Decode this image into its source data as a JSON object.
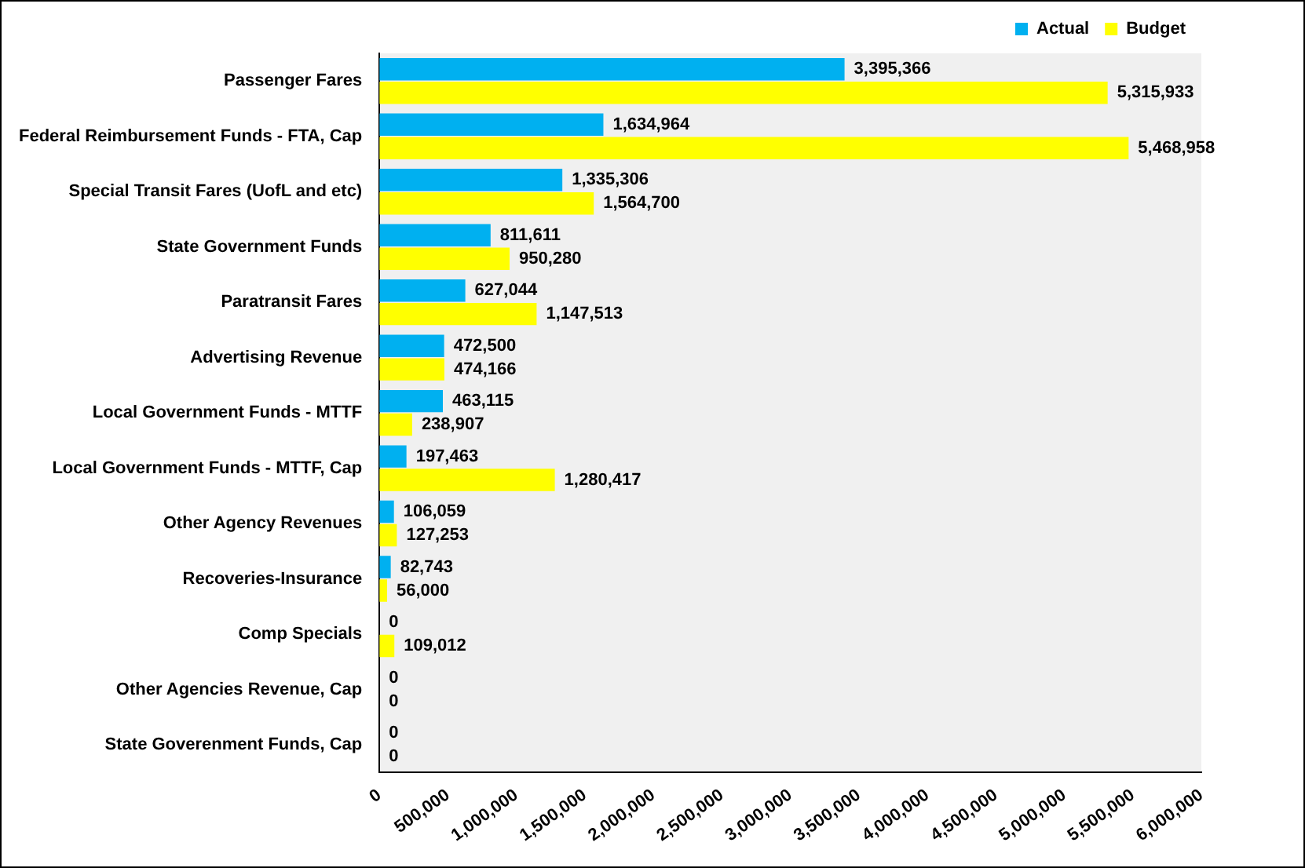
{
  "chart_data": {
    "type": "bar",
    "orientation": "horizontal",
    "categories": [
      "Passenger Fares",
      "Federal Reimbursement Funds - FTA, Cap",
      "Special Transit Fares (UofL and etc)",
      "State Government Funds",
      "Paratransit Fares",
      "Advertising Revenue",
      "Local Government Funds - MTTF",
      "Local Government Funds - MTTF, Cap",
      "Other Agency Revenues",
      "Recoveries-Insurance",
      "Comp Specials",
      "Other Agencies Revenue, Cap",
      "State Goverenment Funds, Cap"
    ],
    "series": [
      {
        "name": "Actual",
        "color": "#00b0f0",
        "values": [
          3395366,
          1634964,
          1335306,
          811611,
          627044,
          472500,
          463115,
          197463,
          106059,
          82743,
          0,
          0,
          0
        ],
        "value_labels": [
          "3,395,366",
          "1,634,964",
          "1,335,306",
          "811,611",
          "627,044",
          "472,500",
          "463,115",
          "197,463",
          "106,059",
          "82,743",
          "0",
          "0",
          "0"
        ]
      },
      {
        "name": "Budget",
        "color": "#ffff00",
        "values": [
          5315933,
          5468958,
          1564700,
          950280,
          1147513,
          474166,
          238907,
          1280417,
          127253,
          56000,
          109012,
          0,
          0
        ],
        "value_labels": [
          "5,315,933",
          "5,468,958",
          "1,564,700",
          "950,280",
          "1,147,513",
          "474,166",
          "238,907",
          "1,280,417",
          "127,253",
          "56,000",
          "109,012",
          "0",
          "0"
        ]
      }
    ],
    "xlim": [
      0,
      6000000
    ],
    "xticks": [
      0,
      {
        "value": 500000,
        "label": "500,000"
      },
      {
        "value": 1000000,
        "label": "1,000,000"
      },
      {
        "value": 1500000,
        "label": "1,500,000"
      },
      {
        "value": 2000000,
        "label": "2,000,000"
      },
      {
        "value": 2500000,
        "label": "2,500,000"
      },
      {
        "value": 3000000,
        "label": "3,000,000"
      },
      {
        "value": 3500000,
        "label": "3,500,000"
      },
      {
        "value": 4000000,
        "label": "4,000,000"
      },
      {
        "value": 4500000,
        "label": "4,500,000"
      },
      {
        "value": 5000000,
        "label": "5,000,000"
      },
      {
        "value": 5500000,
        "label": "5,500,000"
      },
      {
        "value": 6000000,
        "label": "6,000,000"
      }
    ],
    "grid": false,
    "legend": "top right"
  }
}
